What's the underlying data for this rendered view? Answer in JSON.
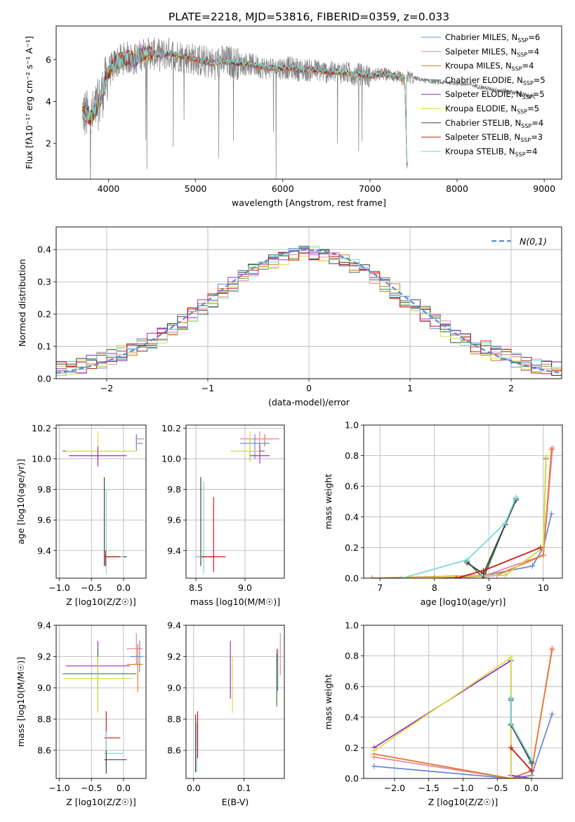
{
  "figure_title": "PLATE=2218, MJD=53816, FIBERID=0359, z=0.033",
  "series_legend": [
    {
      "name": "Chabrier MILES, N",
      "sub": "SSP",
      "tail": "=6",
      "color": "#6b8bd6"
    },
    {
      "name": "Salpeter MILES, N",
      "sub": "SSP",
      "tail": "=4",
      "color": "#e98aa0"
    },
    {
      "name": "Kroupa MILES, N",
      "sub": "SSP",
      "tail": "=4",
      "color": "#e07a30"
    },
    {
      "name": "Chabrier ELODIE, N",
      "sub": "SSP",
      "tail": "=5",
      "color": "#3a7a3a"
    },
    {
      "name": "Salpeter ELODIE, N",
      "sub": "SSP",
      "tail": "=5",
      "color": "#9b30c0"
    },
    {
      "name": "Kroupa ELODIE, N",
      "sub": "SSP",
      "tail": "=5",
      "color": "#d8e040"
    },
    {
      "name": "Chabrier STELIB, N",
      "sub": "SSP",
      "tail": "=4",
      "color": "#444444"
    },
    {
      "name": "Salpeter STELIB, N",
      "sub": "SSP",
      "tail": "=3",
      "color": "#cc1a1a"
    },
    {
      "name": "Kroupa STELIB, N",
      "sub": "SSP",
      "tail": "=4",
      "color": "#7fd8d8"
    }
  ],
  "chart_data": [
    {
      "id": "spectrum",
      "type": "line",
      "title": "",
      "xlabel": "wavelength [Angstrom, rest frame]",
      "ylabel": "Flux [fλ10⁻¹⁷ erg cm⁻² s⁻¹ A⁻¹]",
      "xlim": [
        3400,
        9200
      ],
      "ylim": [
        0.3,
        7.6
      ],
      "xticks": [
        4000,
        5000,
        6000,
        7000,
        8000,
        9000
      ],
      "yticks": [
        2,
        4,
        6
      ],
      "grid": false,
      "legend": "top-right",
      "data_color": "#808080",
      "model_x": [
        3700,
        3800,
        3900,
        4000,
        4100,
        4200,
        4300,
        4400,
        4500,
        4600,
        4700,
        4800,
        4900,
        5000,
        5100,
        5200,
        5300,
        5400,
        5500,
        5600,
        5700,
        5800,
        5900,
        6000,
        6100,
        6200,
        6300,
        6400,
        6500,
        6600,
        6700,
        6800,
        6900,
        7000,
        7100,
        7200,
        7300,
        7400,
        7430
      ],
      "model_y": [
        3.5,
        3.2,
        4.0,
        5.4,
        5.9,
        6.1,
        6.0,
        6.3,
        6.3,
        6.2,
        6.3,
        6.2,
        6.1,
        6.0,
        5.9,
        5.8,
        5.9,
        5.9,
        5.8,
        5.8,
        5.7,
        5.6,
        5.6,
        5.6,
        5.6,
        5.5,
        5.5,
        5.5,
        5.4,
        5.4,
        5.4,
        5.3,
        5.3,
        5.2,
        5.3,
        5.3,
        5.2,
        5.0,
        0.3
      ],
      "data_x_end": 8900,
      "data_tail_y": [
        5.2,
        5.1,
        5.0,
        4.95,
        4.9,
        4.9,
        4.85,
        4.8,
        4.7,
        4.6,
        4.55,
        4.5,
        4.4,
        4.3,
        4.2
      ]
    },
    {
      "id": "residual-hist",
      "type": "line",
      "xlabel": "(data-model)/error",
      "ylabel": "Normed distribution",
      "xlim": [
        -2.5,
        2.5
      ],
      "ylim": [
        0,
        0.47
      ],
      "xticks": [
        -2,
        -1,
        0,
        1,
        2
      ],
      "yticks": [
        0.0,
        0.1,
        0.2,
        0.3,
        0.4
      ],
      "grid": true,
      "legend": "top-right",
      "gauss_label": "N(0,1)",
      "bin_width": 0.1
    },
    {
      "id": "age-vs-Z",
      "type": "scatter",
      "xlabel": "Z [log10(Z/Z☉)]",
      "ylabel": "age [log10(age/yr)]",
      "xlim": [
        -1.05,
        0.35
      ],
      "ylim": [
        9.22,
        10.22
      ],
      "xticks": [
        -1.0,
        -0.5,
        0.0
      ],
      "yticks": [
        9.4,
        9.6,
        9.8,
        10.0,
        10.2
      ],
      "grid": true,
      "points": [
        {
          "s": 2,
          "x": 0.2,
          "y": 10.13,
          "dx": [
            0.2,
            0.32
          ],
          "dy": [
            10.11,
            10.14
          ]
        },
        {
          "s": 1,
          "x": 0.2,
          "y": 10.13,
          "dx": [
            0.2,
            0.32
          ],
          "dy": [
            10.11,
            10.16
          ]
        },
        {
          "s": 0,
          "x": 0.2,
          "y": 10.1,
          "dx": [
            0.2,
            0.3
          ],
          "dy": [
            10.05,
            10.16
          ]
        },
        {
          "s": 3,
          "x": -0.4,
          "y": 10.05,
          "dx": [
            -0.95,
            0.18
          ],
          "dy": [
            10.04,
            10.06
          ]
        },
        {
          "s": 5,
          "x": -0.4,
          "y": 10.05,
          "dx": [
            -0.9,
            0.2
          ],
          "dy": [
            9.98,
            10.18
          ]
        },
        {
          "s": 4,
          "x": -0.4,
          "y": 10.02,
          "dx": [
            -0.85,
            0.05
          ],
          "dy": [
            9.95,
            10.08
          ]
        },
        {
          "s": 6,
          "x": -0.3,
          "y": 9.36,
          "dx": [
            -0.3,
            0.05
          ],
          "dy": [
            9.3,
            9.88
          ]
        },
        {
          "s": 8,
          "x": -0.27,
          "y": 9.36,
          "dx": [
            -0.3,
            0.0
          ],
          "dy": [
            9.25,
            9.8
          ]
        },
        {
          "s": 7,
          "x": -0.28,
          "y": 9.36,
          "dx": [
            -0.3,
            -0.05
          ],
          "dy": [
            9.3,
            9.4
          ]
        }
      ]
    },
    {
      "id": "age-vs-mass",
      "type": "scatter",
      "xlabel": "mass [log10(M/M☉)]",
      "ylabel": "",
      "xlim": [
        8.4,
        9.4
      ],
      "ylim": [
        9.22,
        10.22
      ],
      "xticks": [
        8.5,
        9.0
      ],
      "yticks": [
        9.4,
        9.6,
        9.8,
        10.0,
        10.2
      ],
      "grid": true,
      "points": [
        {
          "s": 2,
          "x": 9.2,
          "y": 10.13,
          "dx": [
            9.0,
            9.3
          ],
          "dy": [
            10.08,
            10.16
          ]
        },
        {
          "s": 1,
          "x": 9.15,
          "y": 10.13,
          "dx": [
            8.95,
            9.35
          ],
          "dy": [
            10.05,
            10.18
          ]
        },
        {
          "s": 0,
          "x": 9.1,
          "y": 10.1,
          "dx": [
            8.95,
            9.25
          ],
          "dy": [
            10.0,
            10.16
          ]
        },
        {
          "s": 3,
          "x": 9.05,
          "y": 10.05,
          "dx": [
            8.85,
            9.2
          ],
          "dy": [
            9.98,
            10.12
          ]
        },
        {
          "s": 5,
          "x": 9.05,
          "y": 10.05,
          "dx": [
            8.85,
            9.15
          ],
          "dy": [
            9.98,
            10.18
          ]
        },
        {
          "s": 4,
          "x": 9.15,
          "y": 10.02,
          "dx": [
            9.05,
            9.25
          ],
          "dy": [
            9.97,
            10.1
          ]
        },
        {
          "s": 6,
          "x": 8.55,
          "y": 9.36,
          "dx": [
            8.5,
            8.7
          ],
          "dy": [
            9.3,
            9.88
          ]
        },
        {
          "s": 8,
          "x": 8.58,
          "y": 9.36,
          "dx": [
            8.5,
            8.65
          ],
          "dy": [
            9.25,
            9.85
          ]
        },
        {
          "s": 7,
          "x": 8.68,
          "y": 9.36,
          "dx": [
            8.55,
            8.8
          ],
          "dy": [
            9.26,
            9.75
          ]
        }
      ]
    },
    {
      "id": "massweight-vs-age",
      "type": "line",
      "xlabel": "age [log10(age/yr)]",
      "ylabel": "mass weight",
      "xlim": [
        6.7,
        10.35
      ],
      "ylim": [
        0,
        1.0
      ],
      "xticks": [
        7,
        8,
        9,
        10
      ],
      "yticks": [
        0.0,
        0.2,
        0.4,
        0.6,
        0.8,
        1.0
      ],
      "grid": true,
      "lines": [
        {
          "s": 0,
          "x": [
            8.95,
            9.8,
            10.0,
            10.15
          ],
          "y": [
            0.02,
            0.08,
            0.2,
            0.42
          ]
        },
        {
          "s": 1,
          "x": [
            7.4,
            8.95,
            10.0,
            10.17
          ],
          "y": [
            0.0,
            0.02,
            0.15,
            0.85
          ]
        },
        {
          "s": 2,
          "x": [
            6.85,
            9.15,
            10.0,
            10.15
          ],
          "y": [
            0.0,
            0.02,
            0.15,
            0.84
          ]
        },
        {
          "s": 3,
          "x": [
            8.6,
            8.9,
            9.3,
            9.5
          ],
          "y": [
            0.11,
            0.0,
            0.35,
            0.52
          ]
        },
        {
          "s": 4,
          "x": [
            8.0,
            9.3,
            10.0,
            10.05
          ],
          "y": [
            0.0,
            0.02,
            0.2,
            0.78
          ]
        },
        {
          "s": 5,
          "x": [
            7.4,
            9.3,
            10.0,
            10.05
          ],
          "y": [
            0.0,
            0.02,
            0.2,
            0.79
          ]
        },
        {
          "s": 6,
          "x": [
            8.6,
            8.9,
            9.3,
            9.5
          ],
          "y": [
            0.1,
            0.03,
            0.35,
            0.51
          ]
        },
        {
          "s": 7,
          "x": [
            8.4,
            8.9,
            9.95
          ],
          "y": [
            0.0,
            0.05,
            0.2
          ]
        },
        {
          "s": 8,
          "x": [
            7.4,
            8.6,
            9.3,
            9.5
          ],
          "y": [
            0.0,
            0.12,
            0.36,
            0.53
          ]
        }
      ]
    },
    {
      "id": "mass-vs-Z",
      "type": "scatter",
      "xlabel": "Z [log10(Z/Z☉)]",
      "ylabel": "mass [log10(M/M☉)]",
      "xlim": [
        -1.05,
        0.35
      ],
      "ylim": [
        8.42,
        9.4
      ],
      "xticks": [
        -1.0,
        -0.5,
        0.0
      ],
      "yticks": [
        8.6,
        8.8,
        9.0,
        9.2,
        9.4
      ],
      "grid": true,
      "points": [
        {
          "s": 1,
          "x": 0.2,
          "y": 9.25,
          "dx": [
            0.05,
            0.3
          ],
          "dy": [
            9.15,
            9.35
          ]
        },
        {
          "s": 0,
          "x": 0.25,
          "y": 9.2,
          "dx": [
            0.1,
            0.3
          ],
          "dy": [
            9.1,
            9.3
          ]
        },
        {
          "s": 2,
          "x": 0.22,
          "y": 9.15,
          "dx": [
            0.05,
            0.3
          ],
          "dy": [
            8.97,
            9.28
          ]
        },
        {
          "s": 4,
          "x": -0.4,
          "y": 9.14,
          "dx": [
            -0.9,
            0.1
          ],
          "dy": [
            9.0,
            9.3
          ]
        },
        {
          "s": 3,
          "x": -0.4,
          "y": 9.09,
          "dx": [
            -0.95,
            0.2
          ],
          "dy": [
            8.85,
            9.25
          ]
        },
        {
          "s": 5,
          "x": -0.4,
          "y": 9.06,
          "dx": [
            -0.92,
            0.15
          ],
          "dy": [
            8.84,
            9.2
          ]
        },
        {
          "s": 7,
          "x": -0.27,
          "y": 8.68,
          "dx": [
            -0.3,
            -0.05
          ],
          "dy": [
            8.6,
            8.85
          ]
        },
        {
          "s": 8,
          "x": -0.27,
          "y": 8.58,
          "dx": [
            -0.3,
            0.0
          ],
          "dy": [
            8.48,
            8.72
          ]
        },
        {
          "s": 6,
          "x": -0.27,
          "y": 8.54,
          "dx": [
            -0.3,
            0.05
          ],
          "dy": [
            8.45,
            8.6
          ]
        }
      ]
    },
    {
      "id": "mass-vs-EBV",
      "type": "scatter",
      "xlabel": "E(B-V)",
      "ylabel": "",
      "xlim": [
        -0.015,
        0.18
      ],
      "ylim": [
        8.42,
        9.4
      ],
      "xticks": [
        0.0,
        0.1
      ],
      "yticks": [
        8.6,
        8.8,
        9.0,
        9.2,
        9.4
      ],
      "grid": true,
      "points": [
        {
          "s": 1,
          "x": 0.172,
          "y": 9.2,
          "dx": [
            0.172,
            0.172
          ],
          "dy": [
            9.08,
            9.35
          ]
        },
        {
          "s": 2,
          "x": 0.165,
          "y": 9.15,
          "dx": [
            0.165,
            0.165
          ],
          "dy": [
            8.97,
            9.25
          ]
        },
        {
          "s": 0,
          "x": 0.167,
          "y": 9.15,
          "dx": [
            0.167,
            0.167
          ],
          "dy": [
            8.98,
            9.25
          ]
        },
        {
          "s": 3,
          "x": 0.165,
          "y": 9.1,
          "dx": [
            0.165,
            0.165
          ],
          "dy": [
            8.88,
            9.22
          ]
        },
        {
          "s": 4,
          "x": 0.073,
          "y": 9.14,
          "dx": [
            0.073,
            0.073
          ],
          "dy": [
            8.93,
            9.3
          ]
        },
        {
          "s": 5,
          "x": 0.077,
          "y": 9.06,
          "dx": [
            0.077,
            0.077
          ],
          "dy": [
            8.84,
            9.2
          ]
        },
        {
          "s": 7,
          "x": 0.008,
          "y": 8.68,
          "dx": [
            0.008,
            0.008
          ],
          "dy": [
            8.55,
            8.85
          ]
        },
        {
          "s": 6,
          "x": 0.004,
          "y": 8.62,
          "dx": [
            0.004,
            0.004
          ],
          "dy": [
            8.46,
            8.83
          ]
        },
        {
          "s": 8,
          "x": 0.006,
          "y": 8.58,
          "dx": [
            0.006,
            0.006
          ],
          "dy": [
            8.46,
            8.78
          ]
        }
      ]
    },
    {
      "id": "massweight-vs-Z",
      "type": "line",
      "xlabel": "Z [log10(Z/Z☉)]",
      "ylabel": "mass weight",
      "xlim": [
        -2.45,
        0.45
      ],
      "ylim": [
        0,
        1.0
      ],
      "xticks": [
        -2.0,
        -1.5,
        -1.0,
        -0.5,
        0.0
      ],
      "yticks": [
        0.0,
        0.2,
        0.4,
        0.6,
        0.8,
        1.0
      ],
      "grid": true,
      "lines": [
        {
          "s": 0,
          "x": [
            -2.3,
            -0.3,
            0.0,
            0.3
          ],
          "y": [
            0.08,
            0.0,
            0.02,
            0.42
          ]
        },
        {
          "s": 1,
          "x": [
            -2.3,
            -0.3,
            0.0,
            0.3
          ],
          "y": [
            0.14,
            0.0,
            0.05,
            0.85
          ]
        },
        {
          "s": 2,
          "x": [
            -2.3,
            -0.3,
            0.0,
            0.3
          ],
          "y": [
            0.16,
            0.0,
            0.05,
            0.84
          ]
        },
        {
          "s": 3,
          "x": [
            -0.3,
            -0.3,
            0.0
          ],
          "y": [
            0.52,
            0.35,
            0.11
          ]
        },
        {
          "s": 4,
          "x": [
            -2.3,
            -0.3,
            -0.3,
            0.0
          ],
          "y": [
            0.2,
            0.77,
            0.02,
            0.0
          ]
        },
        {
          "s": 5,
          "x": [
            -2.3,
            -0.3,
            -0.3,
            0.0
          ],
          "y": [
            0.18,
            0.79,
            0.0,
            0.0
          ]
        },
        {
          "s": 6,
          "x": [
            -0.3,
            -0.3,
            0.0
          ],
          "y": [
            0.51,
            0.35,
            0.1
          ]
        },
        {
          "s": 7,
          "x": [
            -0.3,
            0.0
          ],
          "y": [
            0.2,
            0.05
          ]
        },
        {
          "s": 8,
          "x": [
            -0.3,
            -0.3,
            0.0
          ],
          "y": [
            0.53,
            0.36,
            0.12
          ]
        }
      ]
    }
  ]
}
